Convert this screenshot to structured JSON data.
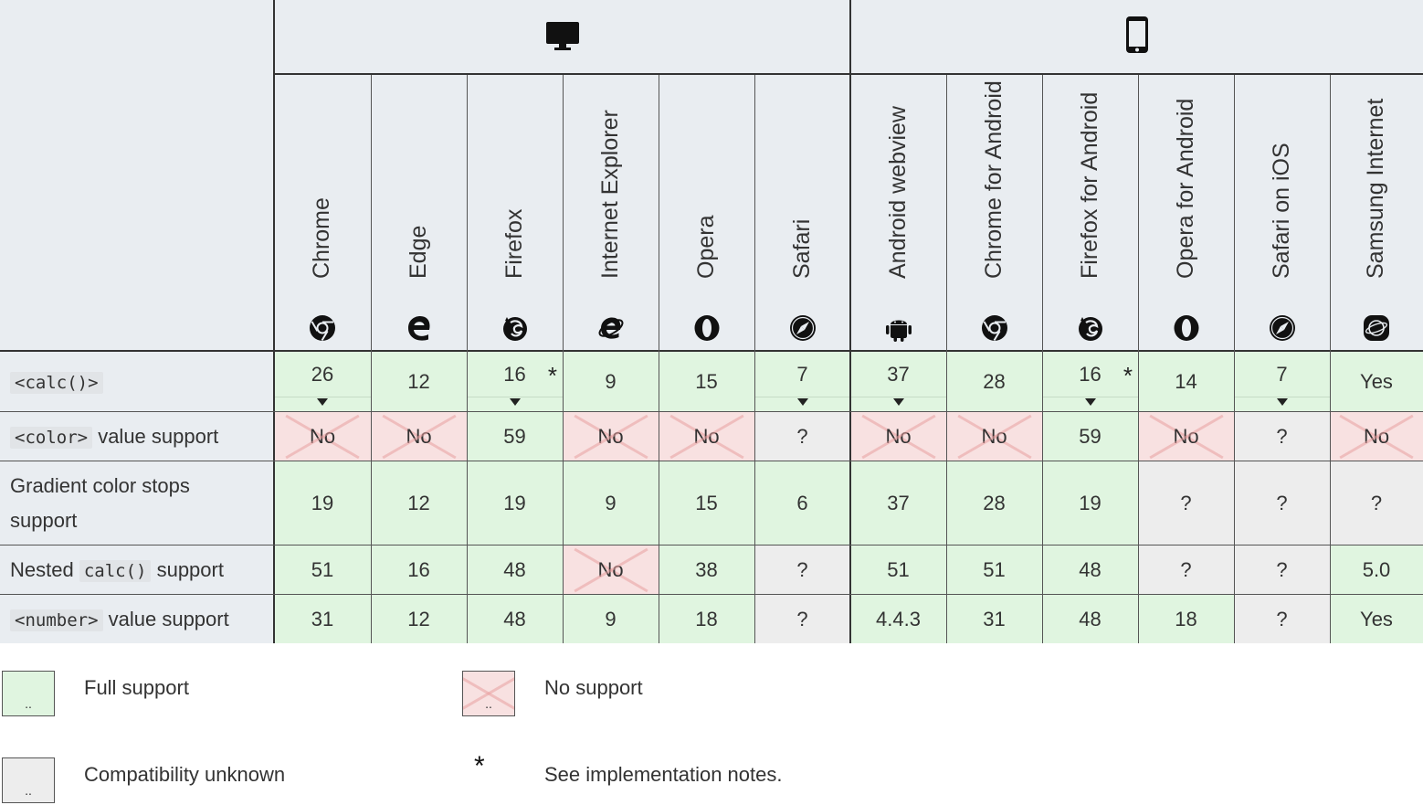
{
  "platforms": [
    {
      "name": "desktop-icon"
    },
    {
      "name": "mobile-icon"
    }
  ],
  "browsers": [
    {
      "name": "Chrome",
      "icon": "chrome-icon"
    },
    {
      "name": "Edge",
      "icon": "edge-icon"
    },
    {
      "name": "Firefox",
      "icon": "firefox-icon"
    },
    {
      "name": "Internet Explorer",
      "icon": "ie-icon"
    },
    {
      "name": "Opera",
      "icon": "opera-icon"
    },
    {
      "name": "Safari",
      "icon": "safari-icon"
    },
    {
      "name": "Android webview",
      "icon": "android-icon"
    },
    {
      "name": "Chrome for Android",
      "icon": "chrome-icon"
    },
    {
      "name": "Firefox for Android",
      "icon": "firefox-icon"
    },
    {
      "name": "Opera for Android",
      "icon": "opera-icon"
    },
    {
      "name": "Safari on iOS",
      "icon": "safari-icon"
    },
    {
      "name": "Samsung Internet",
      "icon": "samsung-internet-icon"
    }
  ],
  "rows": [
    {
      "label_parts": [
        {
          "code": "<calc()>"
        }
      ],
      "cells": [
        {
          "v": "26",
          "s": "full",
          "expand": true
        },
        {
          "v": "12",
          "s": "full"
        },
        {
          "v": "16",
          "s": "full",
          "expand": true,
          "star": true
        },
        {
          "v": "9",
          "s": "full"
        },
        {
          "v": "15",
          "s": "full"
        },
        {
          "v": "7",
          "s": "full",
          "expand": true
        },
        {
          "v": "37",
          "s": "full",
          "expand": true
        },
        {
          "v": "28",
          "s": "full"
        },
        {
          "v": "16",
          "s": "full",
          "expand": true,
          "star": true
        },
        {
          "v": "14",
          "s": "full"
        },
        {
          "v": "7",
          "s": "full",
          "expand": true
        },
        {
          "v": "Yes",
          "s": "full"
        }
      ]
    },
    {
      "label_parts": [
        {
          "code": "<color>"
        },
        {
          "text": " value support"
        }
      ],
      "cells": [
        {
          "v": "No",
          "s": "none"
        },
        {
          "v": "No",
          "s": "none"
        },
        {
          "v": "59",
          "s": "full"
        },
        {
          "v": "No",
          "s": "none"
        },
        {
          "v": "No",
          "s": "none"
        },
        {
          "v": "?",
          "s": "unk"
        },
        {
          "v": "No",
          "s": "none"
        },
        {
          "v": "No",
          "s": "none"
        },
        {
          "v": "59",
          "s": "full"
        },
        {
          "v": "No",
          "s": "none"
        },
        {
          "v": "?",
          "s": "unk"
        },
        {
          "v": "No",
          "s": "none"
        }
      ]
    },
    {
      "label_parts": [
        {
          "text": "Gradient color stops support"
        }
      ],
      "cells": [
        {
          "v": "19",
          "s": "full"
        },
        {
          "v": "12",
          "s": "full"
        },
        {
          "v": "19",
          "s": "full"
        },
        {
          "v": "9",
          "s": "full"
        },
        {
          "v": "15",
          "s": "full"
        },
        {
          "v": "6",
          "s": "full"
        },
        {
          "v": "37",
          "s": "full"
        },
        {
          "v": "28",
          "s": "full"
        },
        {
          "v": "19",
          "s": "full"
        },
        {
          "v": "?",
          "s": "unk"
        },
        {
          "v": "?",
          "s": "unk"
        },
        {
          "v": "?",
          "s": "unk"
        }
      ]
    },
    {
      "label_parts": [
        {
          "text": "Nested "
        },
        {
          "code": "calc()"
        },
        {
          "text": " support"
        }
      ],
      "cells": [
        {
          "v": "51",
          "s": "full"
        },
        {
          "v": "16",
          "s": "full"
        },
        {
          "v": "48",
          "s": "full"
        },
        {
          "v": "No",
          "s": "none"
        },
        {
          "v": "38",
          "s": "full"
        },
        {
          "v": "?",
          "s": "unk"
        },
        {
          "v": "51",
          "s": "full"
        },
        {
          "v": "51",
          "s": "full"
        },
        {
          "v": "48",
          "s": "full"
        },
        {
          "v": "?",
          "s": "unk"
        },
        {
          "v": "?",
          "s": "unk"
        },
        {
          "v": "5.0",
          "s": "full"
        }
      ]
    },
    {
      "label_parts": [
        {
          "code": "<number>"
        },
        {
          "text": " value support"
        }
      ],
      "cells": [
        {
          "v": "31",
          "s": "full"
        },
        {
          "v": "12",
          "s": "full"
        },
        {
          "v": "48",
          "s": "full"
        },
        {
          "v": "9",
          "s": "full"
        },
        {
          "v": "18",
          "s": "full"
        },
        {
          "v": "?",
          "s": "unk"
        },
        {
          "v": "4.4.3",
          "s": "full"
        },
        {
          "v": "31",
          "s": "full"
        },
        {
          "v": "48",
          "s": "full"
        },
        {
          "v": "18",
          "s": "full"
        },
        {
          "v": "?",
          "s": "unk"
        },
        {
          "v": "Yes",
          "s": "full"
        }
      ]
    }
  ],
  "legend": {
    "full_support": "Full support",
    "no_support": "No support",
    "unknown": "Compatibility unknown",
    "star_symbol": "*",
    "notes": "See implementation notes.",
    "box_dots": ".."
  },
  "colors": {
    "full": "#e0f5e0",
    "none": "#f8e1e1",
    "unknown": "#ededed",
    "header": "#e9edf1",
    "border": "#333333"
  }
}
